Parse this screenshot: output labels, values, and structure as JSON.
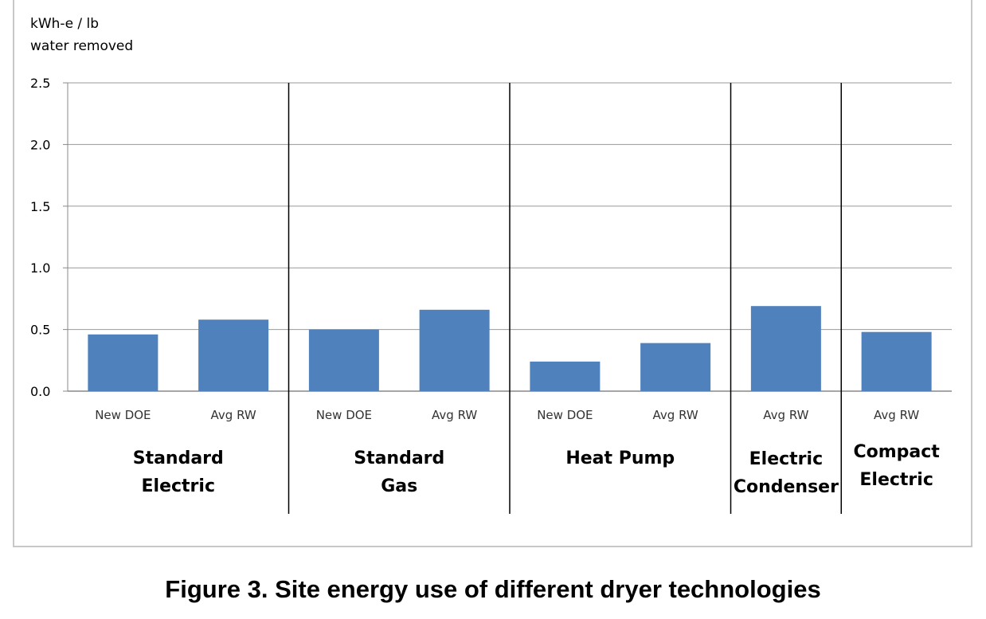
{
  "caption": "Figure 3. Site energy use of different dryer technologies",
  "chart_data": {
    "type": "bar",
    "ylabel_line1": "kWh-e / lb",
    "ylabel_line2": "water removed",
    "ylim": [
      0,
      2.5
    ],
    "yticks": [
      "0.0",
      "0.5",
      "1.0",
      "1.5",
      "2.0",
      "2.5"
    ],
    "grid": true,
    "bar_color": "#4f81bd",
    "groups": [
      {
        "label_lines": [
          "Standard",
          "Electric"
        ],
        "bars": [
          {
            "label": "New DOE",
            "value": 0.46
          },
          {
            "label": "Avg RW",
            "value": 0.58
          }
        ]
      },
      {
        "label_lines": [
          "Standard",
          "Gas"
        ],
        "bars": [
          {
            "label": "New DOE",
            "value": 0.5
          },
          {
            "label": "Avg RW",
            "value": 0.66
          }
        ]
      },
      {
        "label_lines": [
          "Heat Pump"
        ],
        "bars": [
          {
            "label": "New DOE",
            "value": 0.24
          },
          {
            "label": "Avg RW",
            "value": 0.39
          }
        ]
      },
      {
        "label_lines": [
          "Electric",
          "Condenser"
        ],
        "bars": [
          {
            "label": "Avg RW",
            "value": 0.69
          }
        ]
      },
      {
        "label_lines": [
          "Compact",
          "Electric"
        ],
        "bars": [
          {
            "label": "Avg RW",
            "value": 0.48
          }
        ]
      }
    ]
  }
}
